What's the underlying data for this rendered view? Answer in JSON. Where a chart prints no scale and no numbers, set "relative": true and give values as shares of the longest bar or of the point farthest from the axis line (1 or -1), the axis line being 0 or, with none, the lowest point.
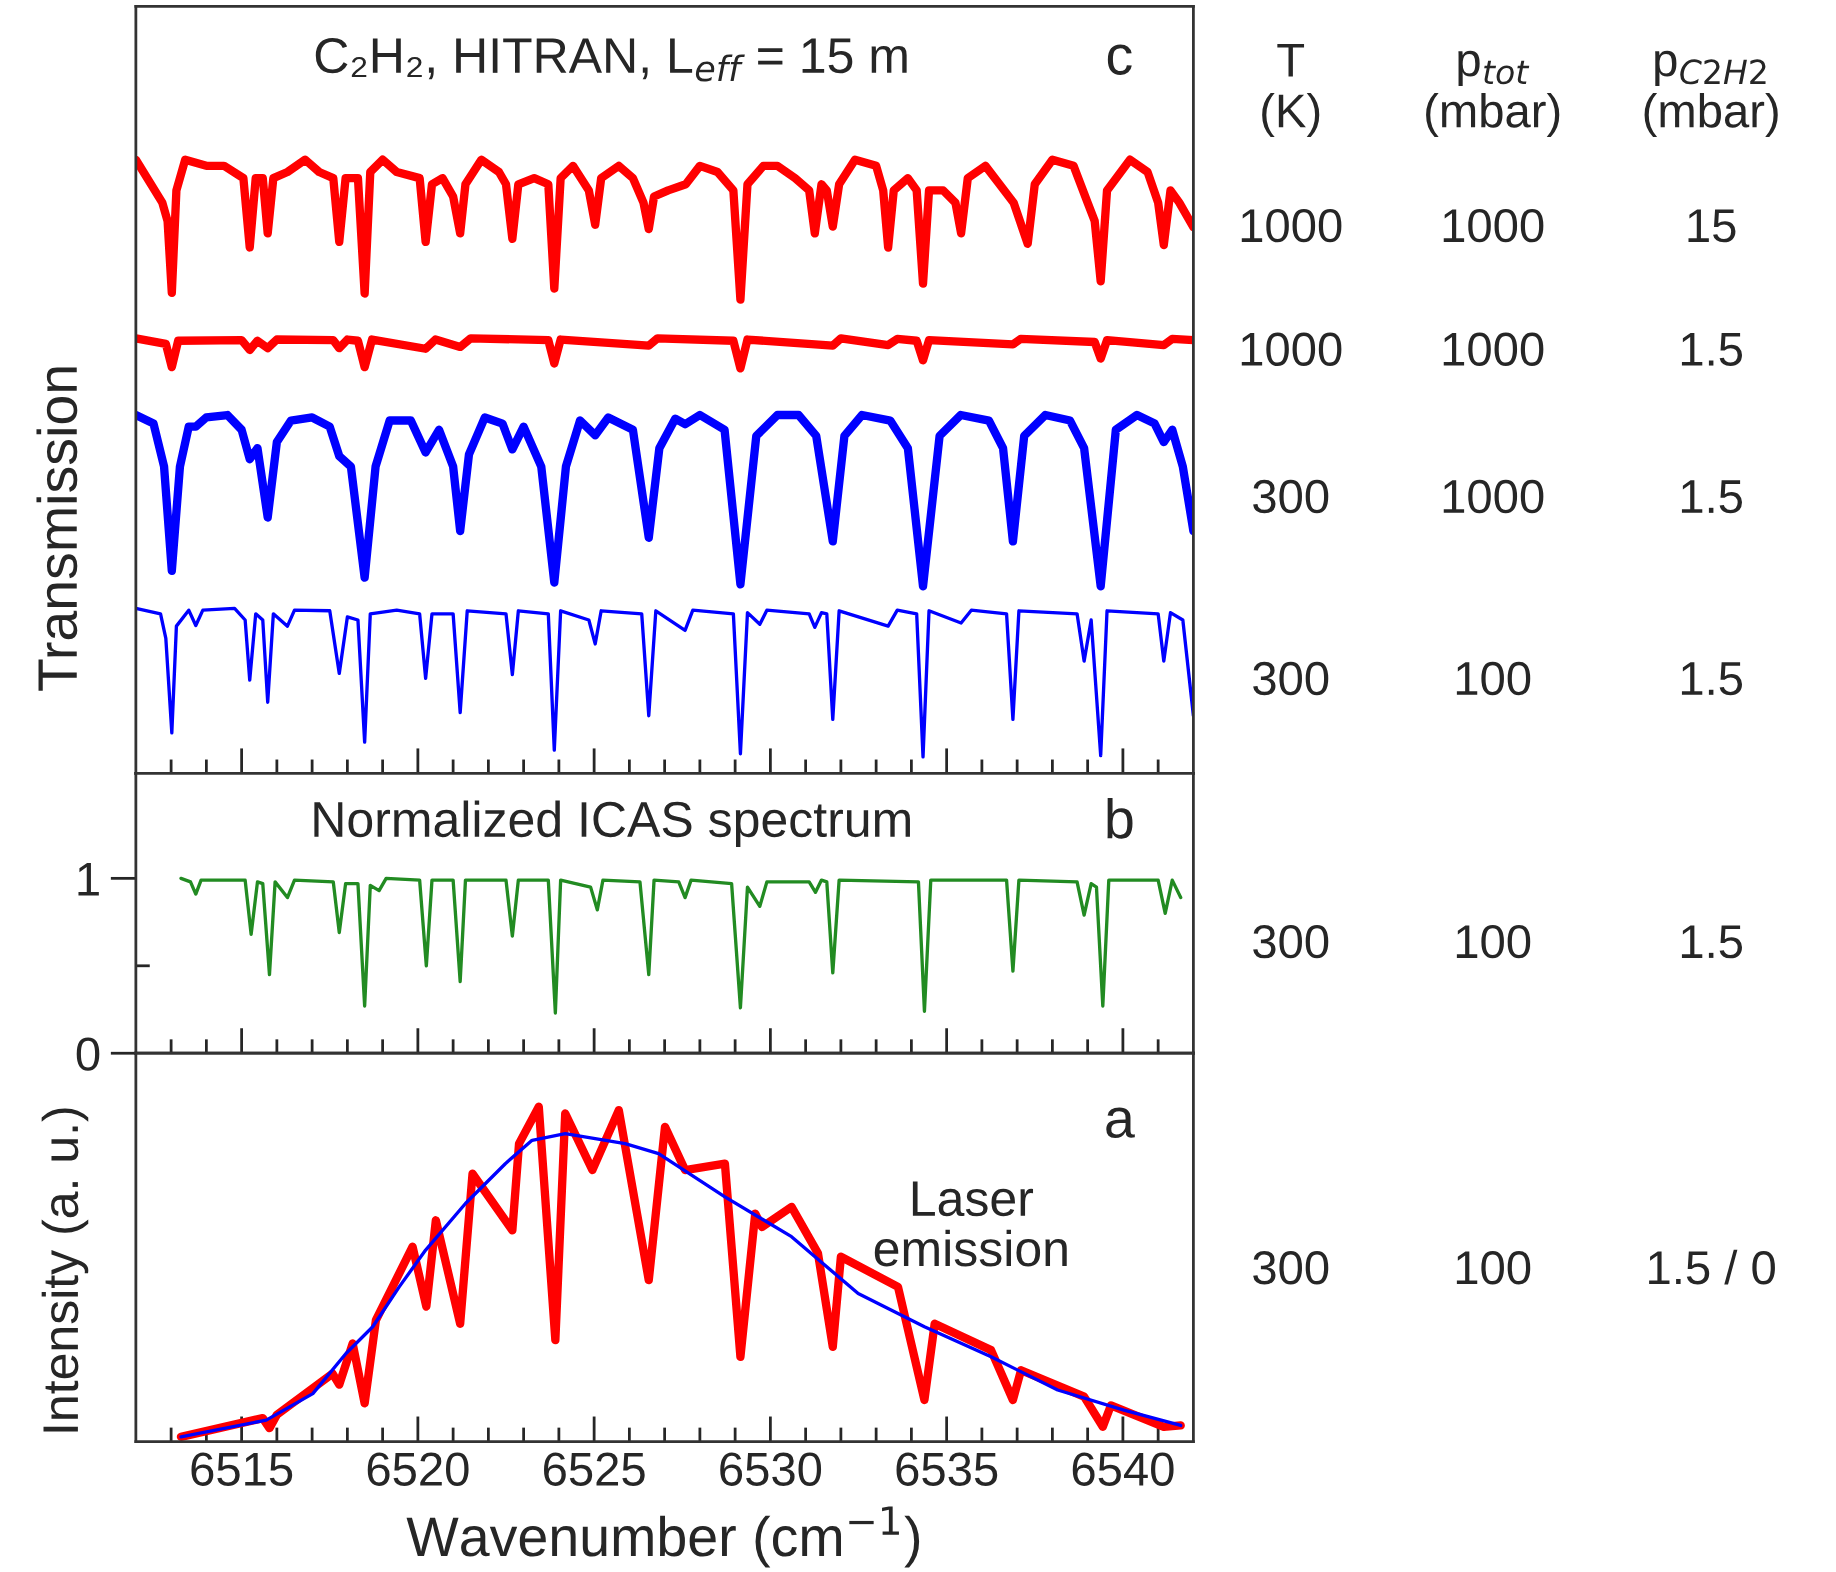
{
  "chart_data": [
    {
      "type": "line",
      "title": "C₂H₂, HITRAN, L$_{eff}$ = 15 m",
      "ylabel": "Transmission",
      "relative": true,
      "tick_labels": false,
      "grid": false,
      "legend": false,
      "xlim": [
        6512,
        6542
      ],
      "xticks": [
        {
          "value": 6513,
          "label": null
        },
        {
          "value": 6514,
          "label": null
        },
        6515,
        {
          "value": 6516,
          "label": null
        },
        {
          "value": 6517,
          "label": null
        },
        {
          "value": 6518,
          "label": null
        },
        {
          "value": 6519,
          "label": null
        },
        6520,
        {
          "value": 6521,
          "label": null
        },
        {
          "value": 6522,
          "label": null
        },
        {
          "value": 6523,
          "label": null
        },
        {
          "value": 6524,
          "label": null
        },
        6525,
        {
          "value": 6526,
          "label": null
        },
        {
          "value": 6527,
          "label": null
        },
        {
          "value": 6528,
          "label": null
        },
        {
          "value": 6529,
          "label": null
        },
        6530,
        {
          "value": 6531,
          "label": null
        },
        {
          "value": 6532,
          "label": null
        },
        {
          "value": 6533,
          "label": null
        },
        {
          "value": 6534,
          "label": null
        },
        6535,
        {
          "value": 6536,
          "label": null
        },
        {
          "value": 6537,
          "label": null
        },
        {
          "value": 6538,
          "label": null
        },
        {
          "value": 6539,
          "label": null
        },
        6540,
        {
          "value": 6541,
          "label": null
        }
      ],
      "annotations": [
        "c",
        "T\n(K)",
        "p$_{tot}$\n(mbar)",
        "p$_{C2H2}$\n(mbar)",
        "1000",
        "1000",
        "15",
        "1000",
        "1000",
        "1.5",
        "300",
        "1000",
        "1.5",
        "300",
        "100",
        "1.5"
      ],
      "series": [
        {
          "color": "#ff0000",
          "x": [
            6512.0,
            6512.75,
            6512.9,
            6513.02,
            6513.15,
            6513.4,
            6514.0,
            6514.5,
            6515.05,
            6515.23,
            6515.4,
            6515.6,
            6515.74,
            6515.9,
            6516.3,
            6516.8,
            6517.2,
            6517.6,
            6517.77,
            6517.95,
            6518.3,
            6518.49,
            6518.65,
            6519.0,
            6519.4,
            6520.05,
            6520.22,
            6520.4,
            6520.7,
            6521.0,
            6521.2,
            6521.35,
            6521.8,
            6522.3,
            6522.5,
            6522.68,
            6522.85,
            6523.3,
            6523.7,
            6523.87,
            6524.05,
            6524.4,
            6524.85,
            6525.03,
            6525.2,
            6525.7,
            6526.1,
            6526.4,
            6526.55,
            6526.7,
            6527.1,
            6527.6,
            6528.0,
            6528.5,
            6528.95,
            6529.15,
            6529.35,
            6529.8,
            6530.2,
            6530.7,
            6531.1,
            6531.26,
            6531.45,
            6531.6,
            6531.77,
            6531.95,
            6532.4,
            6533.0,
            6533.2,
            6533.34,
            6533.5,
            6533.9,
            6534.15,
            6534.33,
            6534.5,
            6534.9,
            6535.25,
            6535.41,
            6535.6,
            6536.1,
            6536.5,
            6536.9,
            6537.3,
            6537.5,
            6538.0,
            6538.6,
            6539.0,
            6539.2,
            6539.37,
            6539.55,
            6540.2,
            6540.7,
            6541.0,
            6541.16,
            6541.35,
            6541.6,
            6542.0
          ],
          "values": [
            1.0,
            0.93,
            0.9,
            0.783,
            0.95,
            1.0,
            0.99,
            0.99,
            0.97,
            0.857,
            0.97,
            0.97,
            0.88,
            0.97,
            0.98,
            1.0,
            0.98,
            0.97,
            0.866,
            0.97,
            0.97,
            0.782,
            0.98,
            1.0,
            0.98,
            0.97,
            0.866,
            0.96,
            0.97,
            0.94,
            0.88,
            0.96,
            1.0,
            0.98,
            0.96,
            0.871,
            0.96,
            0.97,
            0.96,
            0.79,
            0.97,
            0.99,
            0.95,
            0.894,
            0.97,
            0.99,
            0.97,
            0.93,
            0.887,
            0.94,
            0.95,
            0.96,
            0.99,
            0.98,
            0.95,
            0.772,
            0.96,
            0.99,
            0.99,
            0.97,
            0.95,
            0.88,
            0.96,
            0.95,
            0.891,
            0.96,
            1.0,
            0.99,
            0.95,
            0.857,
            0.95,
            0.97,
            0.95,
            0.798,
            0.95,
            0.95,
            0.93,
            0.88,
            0.97,
            0.99,
            0.96,
            0.93,
            0.863,
            0.96,
            1.0,
            0.99,
            0.93,
            0.9,
            0.802,
            0.95,
            1.0,
            0.98,
            0.93,
            0.861,
            0.95,
            0.93,
            0.89
          ]
        },
        {
          "color": "#ff0000",
          "x": [
            6512.0,
            6512.85,
            6513.02,
            6513.2,
            6515.0,
            6515.23,
            6515.45,
            6515.74,
            6516.0,
            6517.6,
            6517.77,
            6518.0,
            6518.3,
            6518.49,
            6518.7,
            6520.22,
            6520.5,
            6521.2,
            6521.5,
            6523.7,
            6523.87,
            6524.05,
            6526.55,
            6526.8,
            6528.95,
            6529.15,
            6529.35,
            6531.77,
            6532.0,
            6533.34,
            6533.6,
            6534.15,
            6534.33,
            6534.5,
            6536.88,
            6537.1,
            6539.2,
            6539.37,
            6539.55,
            6541.16,
            6541.4,
            6542.0
          ],
          "values": [
            0.709,
            0.7,
            0.662,
            0.705,
            0.706,
            0.69,
            0.705,
            0.693,
            0.707,
            0.706,
            0.693,
            0.707,
            0.705,
            0.662,
            0.707,
            0.692,
            0.707,
            0.695,
            0.709,
            0.706,
            0.668,
            0.707,
            0.697,
            0.709,
            0.705,
            0.66,
            0.707,
            0.697,
            0.709,
            0.698,
            0.708,
            0.705,
            0.673,
            0.706,
            0.699,
            0.708,
            0.703,
            0.676,
            0.706,
            0.698,
            0.708,
            0.706
          ]
        },
        {
          "color": "#0000ff",
          "x": [
            6512.0,
            6512.5,
            6512.8,
            6513.02,
            6513.25,
            6513.5,
            6513.7,
            6514.0,
            6514.6,
            6515.0,
            6515.23,
            6515.45,
            6515.74,
            6516.0,
            6516.4,
            6517.0,
            6517.5,
            6517.77,
            6518.1,
            6518.49,
            6518.8,
            6519.2,
            6519.8,
            6520.22,
            6520.6,
            6521.0,
            6521.2,
            6521.45,
            6521.9,
            6522.4,
            6522.68,
            6523.0,
            6523.5,
            6523.87,
            6524.2,
            6524.6,
            6525.03,
            6525.4,
            6526.1,
            6526.55,
            6526.85,
            6527.3,
            6527.58,
            6528.0,
            6528.7,
            6529.15,
            6529.6,
            6530.2,
            6530.8,
            6531.3,
            6531.77,
            6532.1,
            6532.6,
            6533.4,
            6533.9,
            6534.33,
            6534.8,
            6535.4,
            6536.2,
            6536.6,
            6536.88,
            6537.2,
            6537.8,
            6538.5,
            6538.9,
            6539.37,
            6539.8,
            6540.4,
            6540.9,
            6541.16,
            6541.4,
            6541.7,
            6542.0
          ],
          "values": [
            0.584,
            0.57,
            0.5,
            0.33,
            0.5,
            0.565,
            0.565,
            0.58,
            0.584,
            0.56,
            0.512,
            0.53,
            0.417,
            0.54,
            0.575,
            0.58,
            0.565,
            0.517,
            0.5,
            0.319,
            0.5,
            0.575,
            0.575,
            0.523,
            0.56,
            0.5,
            0.395,
            0.52,
            0.58,
            0.57,
            0.528,
            0.565,
            0.5,
            0.311,
            0.5,
            0.575,
            0.551,
            0.58,
            0.56,
            0.384,
            0.53,
            0.578,
            0.569,
            0.584,
            0.56,
            0.308,
            0.55,
            0.584,
            0.584,
            0.55,
            0.378,
            0.55,
            0.584,
            0.575,
            0.53,
            0.305,
            0.55,
            0.584,
            0.575,
            0.53,
            0.378,
            0.55,
            0.584,
            0.575,
            0.53,
            0.305,
            0.56,
            0.584,
            0.57,
            0.54,
            0.56,
            0.5,
            0.395
          ]
        },
        {
          "color": "#0000ff",
          "x": [
            6512.0,
            6512.7,
            6512.85,
            6513.02,
            6513.15,
            6513.5,
            6513.7,
            6513.9,
            6514.8,
            6515.1,
            6515.23,
            6515.4,
            6515.6,
            6515.74,
            6515.9,
            6516.3,
            6516.5,
            6517.5,
            6517.77,
            6518.0,
            6518.3,
            6518.49,
            6518.65,
            6519.4,
            6520.05,
            6520.22,
            6520.4,
            6521.0,
            6521.2,
            6521.4,
            6522.5,
            6522.68,
            6522.85,
            6523.7,
            6523.87,
            6524.05,
            6524.85,
            6525.03,
            6525.2,
            6526.35,
            6526.55,
            6526.75,
            6527.58,
            6527.8,
            6528.95,
            6529.15,
            6529.35,
            6529.7,
            6529.9,
            6531.1,
            6531.26,
            6531.45,
            6531.6,
            6531.77,
            6531.95,
            6533.34,
            6533.6,
            6534.15,
            6534.33,
            6534.5,
            6535.41,
            6535.7,
            6536.7,
            6536.88,
            6537.05,
            6538.7,
            6538.9,
            6539.1,
            6539.37,
            6539.55,
            6541.0,
            6541.16,
            6541.35,
            6541.7,
            6542.0
          ],
          "values": [
            0.269,
            0.26,
            0.22,
            0.066,
            0.24,
            0.266,
            0.241,
            0.266,
            0.269,
            0.25,
            0.152,
            0.26,
            0.25,
            0.116,
            0.26,
            0.24,
            0.266,
            0.265,
            0.163,
            0.255,
            0.25,
            0.051,
            0.26,
            0.266,
            0.26,
            0.155,
            0.26,
            0.26,
            0.099,
            0.265,
            0.26,
            0.161,
            0.265,
            0.26,
            0.038,
            0.265,
            0.25,
            0.211,
            0.265,
            0.26,
            0.094,
            0.265,
            0.233,
            0.266,
            0.26,
            0.032,
            0.262,
            0.243,
            0.266,
            0.26,
            0.238,
            0.262,
            0.26,
            0.088,
            0.265,
            0.24,
            0.266,
            0.26,
            0.027,
            0.265,
            0.245,
            0.266,
            0.26,
            0.088,
            0.265,
            0.26,
            0.183,
            0.25,
            0.029,
            0.265,
            0.26,
            0.183,
            0.262,
            0.25,
            0.094
          ]
        }
      ]
    },
    {
      "type": "line",
      "title": "Normalized ICAS spectrum",
      "tick_labels": "y",
      "grid": false,
      "legend": false,
      "xlim": [
        6512,
        6542
      ],
      "ylim": [
        0,
        1.6
      ],
      "yticks": [
        0,
        1,
        {
          "value": 0.5,
          "label": null
        }
      ],
      "xticks": [
        {
          "value": 6513,
          "label": null
        },
        {
          "value": 6514,
          "label": null
        },
        6515,
        {
          "value": 6516,
          "label": null
        },
        {
          "value": 6517,
          "label": null
        },
        {
          "value": 6518,
          "label": null
        },
        {
          "value": 6519,
          "label": null
        },
        6520,
        {
          "value": 6521,
          "label": null
        },
        {
          "value": 6522,
          "label": null
        },
        {
          "value": 6523,
          "label": null
        },
        {
          "value": 6524,
          "label": null
        },
        6525,
        {
          "value": 6526,
          "label": null
        },
        {
          "value": 6527,
          "label": null
        },
        {
          "value": 6528,
          "label": null
        },
        {
          "value": 6529,
          "label": null
        },
        6530,
        {
          "value": 6531,
          "label": null
        },
        {
          "value": 6532,
          "label": null
        },
        {
          "value": 6533,
          "label": null
        },
        {
          "value": 6534,
          "label": null
        },
        6535,
        {
          "value": 6536,
          "label": null
        },
        {
          "value": 6537,
          "label": null
        },
        {
          "value": 6538,
          "label": null
        },
        {
          "value": 6539,
          "label": null
        },
        6540,
        {
          "value": 6541,
          "label": null
        }
      ],
      "annotations": [
        "b",
        "300",
        "100",
        "1.5"
      ],
      "series": [
        {
          "color": "#228b22",
          "x": [
            6513.28,
            6513.55,
            6513.7,
            6513.85,
            6515.1,
            6515.27,
            6515.45,
            6515.6,
            6515.79,
            6515.95,
            6516.3,
            6516.5,
            6517.6,
            6517.77,
            6517.95,
            6518.3,
            6518.49,
            6518.65,
            6518.9,
            6519.1,
            6520.05,
            6520.24,
            6520.4,
            6521.0,
            6521.2,
            6521.35,
            6522.5,
            6522.68,
            6522.85,
            6523.7,
            6523.9,
            6524.05,
            6524.9,
            6525.09,
            6525.25,
            6526.3,
            6526.55,
            6526.7,
            6527.4,
            6527.58,
            6527.75,
            6528.9,
            6529.15,
            6529.35,
            6529.7,
            6529.9,
            6531.1,
            6531.28,
            6531.45,
            6531.6,
            6531.77,
            6531.95,
            6534.2,
            6534.37,
            6534.55,
            6536.7,
            6536.88,
            6537.05,
            6538.7,
            6538.9,
            6539.1,
            6539.25,
            6539.43,
            6539.6,
            6541.0,
            6541.2,
            6541.4,
            6541.64
          ],
          "values": [
            1.0,
            0.98,
            0.91,
            0.99,
            0.99,
            0.68,
            0.98,
            0.97,
            0.45,
            0.98,
            0.89,
            0.99,
            0.98,
            0.69,
            0.97,
            0.97,
            0.27,
            0.96,
            0.93,
            1.0,
            0.99,
            0.5,
            0.99,
            0.99,
            0.41,
            0.99,
            0.99,
            0.67,
            0.99,
            0.99,
            0.23,
            0.99,
            0.95,
            0.82,
            0.99,
            0.98,
            0.45,
            0.99,
            0.98,
            0.89,
            0.99,
            0.97,
            0.26,
            0.95,
            0.84,
            0.98,
            0.98,
            0.92,
            0.99,
            0.98,
            0.46,
            0.99,
            0.98,
            0.24,
            0.99,
            0.99,
            0.47,
            0.99,
            0.98,
            0.79,
            0.97,
            0.95,
            0.27,
            0.99,
            0.99,
            0.8,
            0.99,
            0.89
          ]
        }
      ]
    },
    {
      "type": "line",
      "xlabel": "Wavenumber (cm$^{−1}$)",
      "ylabel": "Intensity (a. u.)",
      "relative": true,
      "tick_labels": "x",
      "grid": false,
      "legend": false,
      "xlim": [
        6512,
        6542
      ],
      "xticks": [
        {
          "value": 6513,
          "label": null
        },
        {
          "value": 6514,
          "label": null
        },
        6515,
        {
          "value": 6516,
          "label": null
        },
        {
          "value": 6517,
          "label": null
        },
        {
          "value": 6518,
          "label": null
        },
        {
          "value": 6519,
          "label": null
        },
        6520,
        {
          "value": 6521,
          "label": null
        },
        {
          "value": 6522,
          "label": null
        },
        {
          "value": 6523,
          "label": null
        },
        {
          "value": 6524,
          "label": null
        },
        6525,
        {
          "value": 6526,
          "label": null
        },
        {
          "value": 6527,
          "label": null
        },
        {
          "value": 6528,
          "label": null
        },
        {
          "value": 6529,
          "label": null
        },
        6530,
        {
          "value": 6531,
          "label": null
        },
        {
          "value": 6532,
          "label": null
        },
        {
          "value": 6533,
          "label": null
        },
        {
          "value": 6534,
          "label": null
        },
        6535,
        {
          "value": 6536,
          "label": null
        },
        {
          "value": 6537,
          "label": null
        },
        {
          "value": 6538,
          "label": null
        },
        {
          "value": 6539,
          "label": null
        },
        6540,
        {
          "value": 6541,
          "label": null
        }
      ],
      "annotations": [
        "a",
        "Laser\nemission",
        "300",
        "100",
        "1.5 / 0"
      ],
      "series": [
        {
          "color": "#ff0000",
          "x": [
            6513.28,
            6515.6,
            6515.79,
            6516.0,
            6517.58,
            6517.77,
            6518.15,
            6518.49,
            6518.81,
            6519.85,
            6520.24,
            6520.51,
            6521.2,
            6521.55,
            6522.68,
            6522.87,
            6523.43,
            6523.9,
            6524.18,
            6524.95,
            6525.7,
            6526.55,
            6527.01,
            6527.58,
            6528.71,
            6529.15,
            6529.57,
            6529.76,
            6530.6,
            6531.35,
            6531.77,
            6532.0,
            6533.62,
            6534.37,
            6534.66,
            6536.26,
            6536.88,
            6537.11,
            6538.9,
            6539.43,
            6539.66,
            6541.16,
            6541.64
          ],
          "values": [
            0.014,
            0.07,
            0.04,
            0.08,
            0.203,
            0.17,
            0.293,
            0.114,
            0.363,
            0.582,
            0.403,
            0.661,
            0.352,
            0.8,
            0.631,
            0.89,
            1.0,
            0.303,
            0.98,
            0.811,
            0.99,
            0.482,
            0.94,
            0.811,
            0.83,
            0.253,
            0.681,
            0.641,
            0.701,
            0.562,
            0.283,
            0.552,
            0.462,
            0.124,
            0.352,
            0.273,
            0.124,
            0.213,
            0.134,
            0.044,
            0.108,
            0.044,
            0.048
          ]
        },
        {
          "color": "#0000ff",
          "x": [
            6513.28,
            6515.7,
            6517.02,
            6517.96,
            6518.72,
            6519.47,
            6520.22,
            6521.35,
            6522.48,
            6523.24,
            6524.18,
            6525.88,
            6526.83,
            6528.71,
            6530.6,
            6532.49,
            6534.37,
            6536.26,
            6538.15,
            6540.03,
            6541.64
          ],
          "values": [
            0.014,
            0.064,
            0.143,
            0.263,
            0.343,
            0.462,
            0.572,
            0.711,
            0.83,
            0.9,
            0.92,
            0.89,
            0.86,
            0.731,
            0.612,
            0.442,
            0.343,
            0.253,
            0.154,
            0.094,
            0.048
          ]
        }
      ]
    }
  ]
}
